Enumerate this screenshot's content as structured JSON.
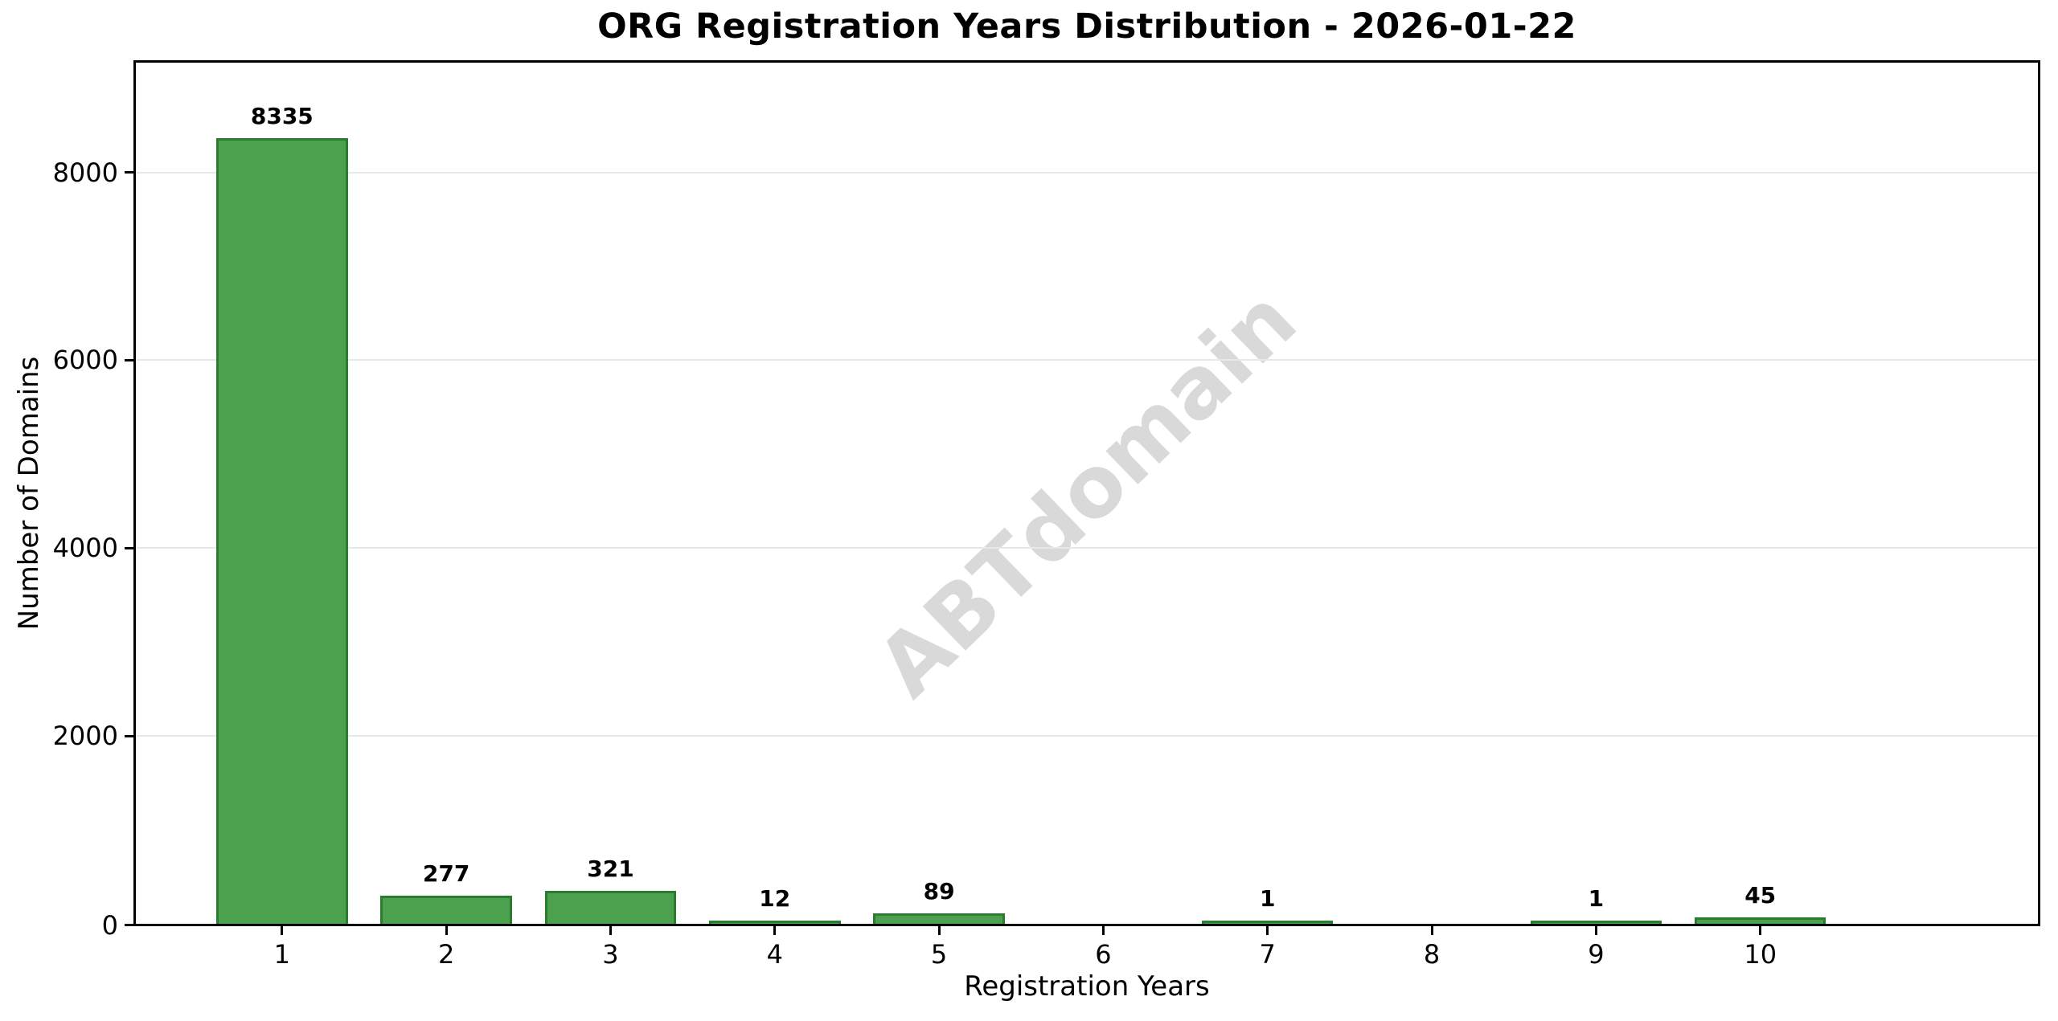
{
  "figure": {
    "title": "ORG Registration Years Distribution - 2026-01-22",
    "xlabel": "Registration Years",
    "ylabel": "Number of Domains",
    "watermark": "ABTdomain"
  },
  "chart_data": {
    "type": "bar",
    "title": "ORG Registration Years Distribution - 2026-01-22",
    "xlabel": "Registration Years",
    "ylabel": "Number of Domains",
    "categories": [
      "1",
      "2",
      "3",
      "4",
      "5",
      "6",
      "7",
      "8",
      "9",
      "10"
    ],
    "values": [
      8335,
      277,
      321,
      12,
      89,
      0,
      1,
      0,
      1,
      45
    ],
    "bar_value_labels": [
      "8335",
      "277",
      "321",
      "12",
      "89",
      "",
      "1",
      "",
      "1",
      "45"
    ],
    "yticks": [
      0,
      2000,
      4000,
      6000,
      8000
    ],
    "ytick_labels": [
      "0",
      "2000",
      "4000",
      "6000",
      "8000"
    ],
    "ylim": [
      0,
      9168
    ],
    "grid": "horizontal",
    "legend": "none",
    "watermark": "ABTdomain",
    "colors": {
      "bar_fill": "#4ba14e",
      "bar_edge": "#2a7d2e",
      "grid": "#e8e8e8",
      "watermark": "#d9d9d9",
      "spine": "#000000",
      "background": "#ffffff",
      "text": "#000000"
    }
  }
}
